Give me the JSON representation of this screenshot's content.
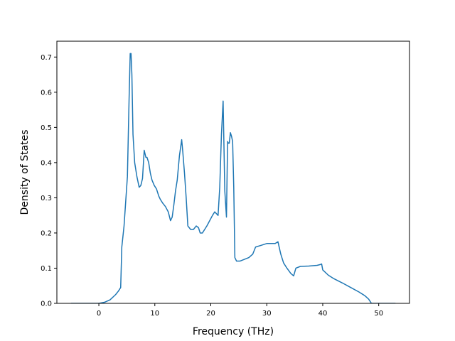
{
  "chart_data": {
    "type": "line",
    "xlabel": "Frequency (THz)",
    "ylabel": "Density of States",
    "xlim": [
      -7.5,
      55.5
    ],
    "ylim": [
      0,
      0.745
    ],
    "grid": false,
    "xticks": [
      0,
      10,
      20,
      30,
      40,
      50
    ],
    "xtick_labels": [
      "0",
      "10",
      "20",
      "30",
      "40",
      "50"
    ],
    "yticks": [
      0.0,
      0.1,
      0.2,
      0.3,
      0.4,
      0.5,
      0.6,
      0.7
    ],
    "ytick_labels": [
      "0.0",
      "0.1",
      "0.2",
      "0.3",
      "0.4",
      "0.5",
      "0.6",
      "0.7"
    ],
    "color": "#1f77b4",
    "series": [
      {
        "x": [
          -5,
          0,
          1,
          2,
          3,
          3.5,
          3.9,
          4.1,
          4.5,
          4.8,
          5.1,
          5.4,
          5.6,
          5.75,
          5.9,
          6.1,
          6.4,
          6.8,
          7.2,
          7.5,
          7.8,
          8.1,
          8.4,
          8.6,
          8.9,
          9.2,
          9.5,
          9.9,
          10.3,
          10.7,
          11.0,
          11.4,
          11.9,
          12.4,
          12.8,
          13.1,
          13.4,
          13.7,
          14.0,
          14.4,
          14.8,
          15.0,
          15.3,
          15.6,
          15.9,
          16.4,
          16.9,
          17.4,
          17.8,
          18.1,
          18.5,
          18.9,
          19.3,
          19.8,
          20.3,
          20.7,
          21.0,
          21.3,
          21.6,
          21.9,
          22.2,
          22.5,
          22.8,
          23.0,
          23.15,
          23.3,
          23.5,
          23.7,
          23.9,
          24.1,
          24.3,
          24.6,
          25.2,
          26.0,
          26.8,
          27.5,
          28.0,
          29.0,
          30.0,
          31.0,
          31.5,
          32.0,
          32.5,
          33.0,
          33.6,
          34.3,
          34.8,
          35.2,
          36.0,
          37.5,
          39.0,
          39.5,
          39.8,
          40.0,
          41.0,
          42.0,
          43.5,
          45.0,
          46.5,
          47.5,
          48.2,
          48.7,
          53
        ],
        "y": [
          0,
          0,
          0.003,
          0.01,
          0.025,
          0.035,
          0.045,
          0.16,
          0.22,
          0.29,
          0.36,
          0.58,
          0.71,
          0.71,
          0.65,
          0.48,
          0.4,
          0.36,
          0.33,
          0.335,
          0.355,
          0.435,
          0.415,
          0.415,
          0.4,
          0.37,
          0.35,
          0.335,
          0.325,
          0.305,
          0.295,
          0.285,
          0.275,
          0.26,
          0.235,
          0.245,
          0.28,
          0.32,
          0.35,
          0.42,
          0.465,
          0.43,
          0.37,
          0.3,
          0.22,
          0.21,
          0.21,
          0.22,
          0.215,
          0.2,
          0.2,
          0.21,
          0.22,
          0.235,
          0.25,
          0.26,
          0.255,
          0.25,
          0.33,
          0.48,
          0.575,
          0.32,
          0.245,
          0.46,
          0.455,
          0.455,
          0.485,
          0.475,
          0.46,
          0.33,
          0.13,
          0.12,
          0.12,
          0.125,
          0.13,
          0.14,
          0.16,
          0.165,
          0.17,
          0.17,
          0.17,
          0.175,
          0.14,
          0.115,
          0.1,
          0.085,
          0.078,
          0.1,
          0.105,
          0.106,
          0.108,
          0.11,
          0.112,
          0.095,
          0.08,
          0.07,
          0.058,
          0.045,
          0.032,
          0.022,
          0.012,
          0.0,
          0.0
        ]
      }
    ]
  }
}
